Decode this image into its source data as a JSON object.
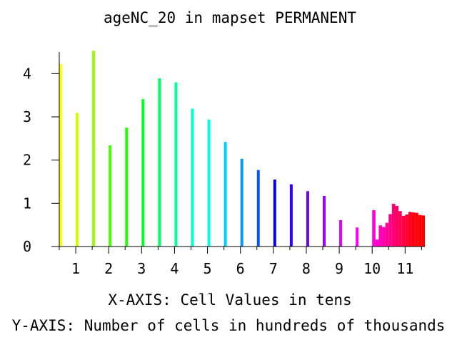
{
  "chart_data": {
    "type": "bar",
    "title": "ageNC_20 in mapset PERMANENT",
    "xlabel": "X-AXIS: Cell Values in tens",
    "ylabel": "Y-AXIS: Number of cells in hundreds of thousands",
    "xlim": [
      0.5,
      11.6
    ],
    "ylim": [
      0,
      4.5
    ],
    "x_ticks": [
      1,
      2,
      3,
      4,
      5,
      6,
      7,
      8,
      9,
      10,
      11
    ],
    "y_ticks": [
      0,
      1,
      2,
      3,
      4
    ],
    "grid": false,
    "legend": "none",
    "bars": [
      {
        "x": 0.5,
        "value": 4.22,
        "color": "#ffff00"
      },
      {
        "x": 1.0,
        "value": 3.09,
        "color": "#ccff00"
      },
      {
        "x": 1.5,
        "value": 4.53,
        "color": "#99ff00"
      },
      {
        "x": 2.0,
        "value": 2.34,
        "color": "#44ff00"
      },
      {
        "x": 2.5,
        "value": 2.75,
        "color": "#22ff00"
      },
      {
        "x": 3.0,
        "value": 3.41,
        "color": "#00ff22"
      },
      {
        "x": 3.5,
        "value": 3.89,
        "color": "#00ff66"
      },
      {
        "x": 4.0,
        "value": 3.8,
        "color": "#00ff99"
      },
      {
        "x": 4.5,
        "value": 3.19,
        "color": "#00ffcc"
      },
      {
        "x": 5.0,
        "value": 2.94,
        "color": "#00ffee"
      },
      {
        "x": 5.5,
        "value": 2.42,
        "color": "#00ccff"
      },
      {
        "x": 6.0,
        "value": 2.03,
        "color": "#0099ff"
      },
      {
        "x": 6.5,
        "value": 1.77,
        "color": "#0055ff"
      },
      {
        "x": 7.0,
        "value": 1.55,
        "color": "#0000ff"
      },
      {
        "x": 7.5,
        "value": 1.44,
        "color": "#3300ff"
      },
      {
        "x": 8.0,
        "value": 1.28,
        "color": "#6600ff"
      },
      {
        "x": 8.5,
        "value": 1.17,
        "color": "#9900ff"
      },
      {
        "x": 9.0,
        "value": 0.61,
        "color": "#dd00ff"
      },
      {
        "x": 9.5,
        "value": 0.44,
        "color": "#ff00ff"
      },
      {
        "x": 10.0,
        "value": 0.84,
        "color": "#ff00dd"
      },
      {
        "x": 10.1,
        "value": 0.16,
        "color": "#ff00cc"
      },
      {
        "x": 10.2,
        "value": 0.49,
        "color": "#ff00bb"
      },
      {
        "x": 10.3,
        "value": 0.45,
        "color": "#ff00aa"
      },
      {
        "x": 10.4,
        "value": 0.55,
        "color": "#ff0099"
      },
      {
        "x": 10.5,
        "value": 0.75,
        "color": "#ff0088"
      },
      {
        "x": 10.6,
        "value": 0.99,
        "color": "#ff0077"
      },
      {
        "x": 10.7,
        "value": 0.94,
        "color": "#ff0066"
      },
      {
        "x": 10.8,
        "value": 0.82,
        "color": "#ff0055"
      },
      {
        "x": 10.9,
        "value": 0.71,
        "color": "#ff0044"
      },
      {
        "x": 11.0,
        "value": 0.74,
        "color": "#ff0033"
      },
      {
        "x": 11.1,
        "value": 0.8,
        "color": "#ff0022"
      },
      {
        "x": 11.2,
        "value": 0.79,
        "color": "#ff0011"
      },
      {
        "x": 11.3,
        "value": 0.78,
        "color": "#ff0008"
      },
      {
        "x": 11.4,
        "value": 0.73,
        "color": "#ff0000"
      },
      {
        "x": 11.5,
        "value": 0.72,
        "color": "#ff0000"
      }
    ]
  }
}
